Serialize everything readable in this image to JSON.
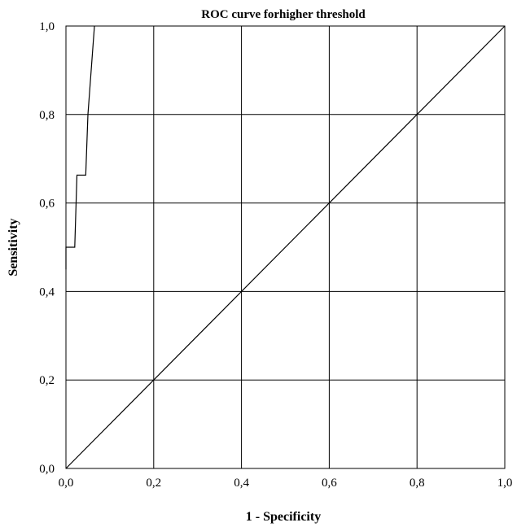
{
  "chart_data": {
    "type": "line",
    "title": "ROC curve forhigher threshold",
    "xlabel": "1 - Specificity",
    "ylabel": "Sensitivity",
    "xlim": [
      0,
      1
    ],
    "ylim": [
      0,
      1
    ],
    "grid": true,
    "legend": "none",
    "xticks": [
      "0,0",
      "0,2",
      "0,4",
      "0,6",
      "0,8",
      "1,0"
    ],
    "yticks": [
      "0,0",
      "0,2",
      "0,4",
      "0,6",
      "0,8",
      "1,0"
    ],
    "series": [
      {
        "x": [
          0.0,
          0.0,
          0.02,
          0.025,
          0.045,
          0.05,
          0.065
        ],
        "y": [
          0.45,
          0.5,
          0.5,
          0.663,
          0.663,
          0.8,
          1.0
        ]
      },
      {
        "x": [
          0.0,
          1.0
        ],
        "y": [
          0.0,
          1.0
        ]
      }
    ]
  }
}
